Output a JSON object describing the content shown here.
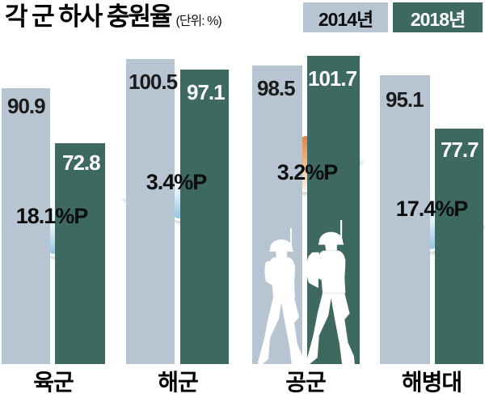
{
  "title": "각 군 하사 충원율",
  "unit": "(단위: %)",
  "legend": [
    {
      "label": "2014년",
      "color": "#b7c5d2",
      "text_color": "#0d0d0d"
    },
    {
      "label": "2018년",
      "color": "#3e6960",
      "text_color": "#ffffff"
    }
  ],
  "chart_data": {
    "type": "bar",
    "categories": [
      "육군",
      "해군",
      "공군",
      "해병대"
    ],
    "series": [
      {
        "name": "2014년",
        "color": "#b7c5d2",
        "values": [
          90.9,
          100.5,
          98.5,
          95.1
        ]
      },
      {
        "name": "2018년",
        "color": "#3e6960",
        "values": [
          72.8,
          97.1,
          101.7,
          77.7
        ]
      }
    ],
    "changes": [
      {
        "label": "18.1%P",
        "direction": "down"
      },
      {
        "label": "3.4%P",
        "direction": "down"
      },
      {
        "label": "3.2%P",
        "direction": "up"
      },
      {
        "label": "17.4%P",
        "direction": "down"
      }
    ],
    "title": "각 군 하사 충원율",
    "ylabel": "%",
    "ylim": [
      0,
      110
    ],
    "grid": false,
    "legend_position": "top-right",
    "arrow_colors": {
      "down_top": "#ffffff",
      "down_bottom": "#8fc3e1",
      "up_top": "#df8148",
      "up_bottom": "#fdf6ef"
    },
    "decoration": "two-white-walking-soldier-silhouettes-over-공군-bars"
  }
}
